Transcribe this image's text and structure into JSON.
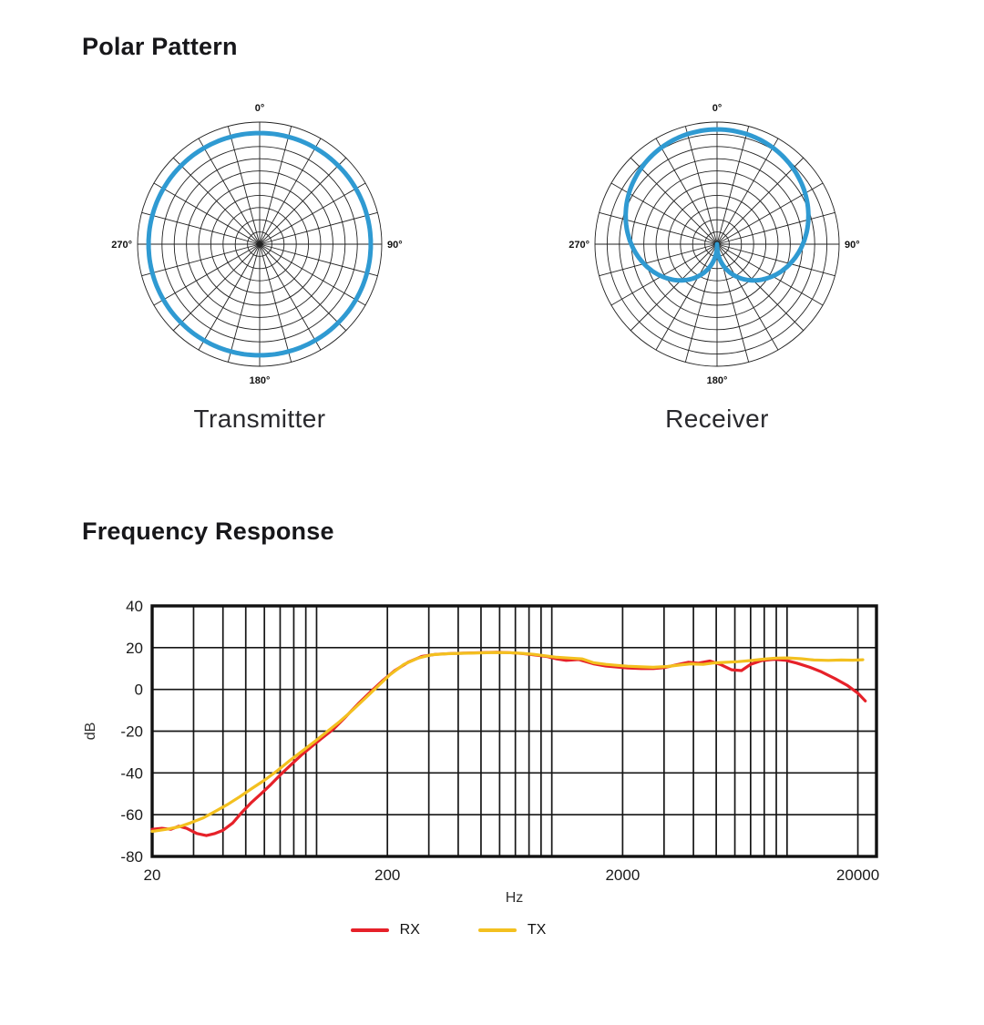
{
  "polar_section": {
    "title": "Polar Pattern",
    "charts": [
      {
        "caption": "Transmitter"
      },
      {
        "caption": "Receiver"
      }
    ]
  },
  "frequency_section": {
    "title": "Frequency Response",
    "legend": [
      {
        "label": "RX",
        "color": "#e62129"
      },
      {
        "label": "TX",
        "color": "#f3c01f"
      }
    ]
  },
  "chart_data": [
    {
      "type": "polar",
      "title": "Transmitter",
      "pattern": "omnidirectional",
      "curve_color": "#2f9ad2",
      "grid_color": "#222222",
      "rings": 10,
      "spoke_step_deg": 15,
      "degree_labels": [
        "0°",
        "90°",
        "180°",
        "270°"
      ],
      "radius_normalized": 0.91
    },
    {
      "type": "polar",
      "title": "Receiver",
      "pattern": "cardioid",
      "curve_color": "#2f9ad2",
      "grid_color": "#222222",
      "rings": 10,
      "spoke_step_deg": 15,
      "degree_labels": [
        "0°",
        "90°",
        "180°",
        "270°"
      ],
      "radius_normalized": 0.94
    },
    {
      "type": "line",
      "title": "Frequency Response",
      "xlabel": "Hz",
      "ylabel": "dB",
      "x_scale": "log",
      "xlim": [
        20,
        24000
      ],
      "ylim": [
        -80,
        40
      ],
      "x_ticks": [
        20,
        200,
        2000,
        20000
      ],
      "y_ticks": [
        40,
        20,
        0,
        -20,
        -40,
        -60,
        -80
      ],
      "x_gridlines": [
        30,
        40,
        50,
        60,
        70,
        80,
        90,
        100,
        200,
        300,
        400,
        500,
        600,
        700,
        800,
        900,
        1000,
        2000,
        3000,
        4000,
        5000,
        6000,
        7000,
        8000,
        9000,
        10000,
        20000
      ],
      "grid_on": true,
      "legend_position": "bottom",
      "series": [
        {
          "name": "RX",
          "color": "#e62129",
          "points": [
            [
              20,
              -67
            ],
            [
              22,
              -66.5
            ],
            [
              24,
              -67
            ],
            [
              26,
              -65.5
            ],
            [
              28,
              -66.5
            ],
            [
              31,
              -69
            ],
            [
              34,
              -70
            ],
            [
              37,
              -69
            ],
            [
              40,
              -67.5
            ],
            [
              44,
              -64
            ],
            [
              48,
              -59
            ],
            [
              53,
              -54
            ],
            [
              58,
              -50
            ],
            [
              64,
              -45.5
            ],
            [
              70,
              -41
            ],
            [
              78,
              -36
            ],
            [
              86,
              -31.5
            ],
            [
              95,
              -27.5
            ],
            [
              105,
              -23.5
            ],
            [
              118,
              -19
            ],
            [
              132,
              -13.5
            ],
            [
              150,
              -7
            ],
            [
              170,
              -1
            ],
            [
              190,
              4
            ],
            [
              215,
              9
            ],
            [
              245,
              13
            ],
            [
              280,
              15.8
            ],
            [
              320,
              16.8
            ],
            [
              370,
              17.2
            ],
            [
              430,
              17.4
            ],
            [
              500,
              17.6
            ],
            [
              580,
              17.8
            ],
            [
              660,
              17.6
            ],
            [
              750,
              17.2
            ],
            [
              850,
              16.5
            ],
            [
              950,
              15.8
            ],
            [
              1050,
              14.6
            ],
            [
              1150,
              13.9
            ],
            [
              1300,
              14.3
            ],
            [
              1500,
              12.3
            ],
            [
              1700,
              11.2
            ],
            [
              1900,
              10.7
            ],
            [
              2100,
              10.3
            ],
            [
              2400,
              10
            ],
            [
              2700,
              10
            ],
            [
              3000,
              10.4
            ],
            [
              3400,
              11.8
            ],
            [
              3800,
              13
            ],
            [
              4200,
              12.6
            ],
            [
              4700,
              13.6
            ],
            [
              5200,
              12
            ],
            [
              5800,
              9.4
            ],
            [
              6400,
              9
            ],
            [
              7000,
              12
            ],
            [
              7800,
              13.8
            ],
            [
              8800,
              14.4
            ],
            [
              9800,
              14
            ],
            [
              11000,
              12.6
            ],
            [
              12500,
              10.6
            ],
            [
              14000,
              8.4
            ],
            [
              16000,
              5.2
            ],
            [
              18000,
              2
            ],
            [
              20000,
              -1.8
            ],
            [
              21500,
              -5.5
            ]
          ]
        },
        {
          "name": "TX",
          "color": "#f3c01f",
          "points": [
            [
              20,
              -68
            ],
            [
              23,
              -67
            ],
            [
              26,
              -65.8
            ],
            [
              29,
              -64
            ],
            [
              33,
              -61.5
            ],
            [
              37,
              -58.5
            ],
            [
              42,
              -55
            ],
            [
              47,
              -51.5
            ],
            [
              53,
              -47.5
            ],
            [
              60,
              -43.5
            ],
            [
              68,
              -39
            ],
            [
              77,
              -34
            ],
            [
              87,
              -29.5
            ],
            [
              98,
              -25
            ],
            [
              110,
              -20.5
            ],
            [
              125,
              -15.5
            ],
            [
              142,
              -10
            ],
            [
              160,
              -4.5
            ],
            [
              180,
              1
            ],
            [
              205,
              7
            ],
            [
              235,
              12
            ],
            [
              270,
              15
            ],
            [
              310,
              16.6
            ],
            [
              360,
              17.1
            ],
            [
              420,
              17.3
            ],
            [
              490,
              17.5
            ],
            [
              570,
              17.7
            ],
            [
              650,
              17.6
            ],
            [
              740,
              17.3
            ],
            [
              840,
              16.8
            ],
            [
              940,
              16.1
            ],
            [
              1050,
              15.4
            ],
            [
              1200,
              15
            ],
            [
              1350,
              14.6
            ],
            [
              1500,
              12.8
            ],
            [
              1700,
              12
            ],
            [
              1900,
              11.5
            ],
            [
              2100,
              11.1
            ],
            [
              2400,
              10.8
            ],
            [
              2700,
              10.6
            ],
            [
              3100,
              11
            ],
            [
              3500,
              11.7
            ],
            [
              3900,
              12.2
            ],
            [
              4400,
              12
            ],
            [
              4900,
              12.7
            ],
            [
              5500,
              13
            ],
            [
              6200,
              13.3
            ],
            [
              7000,
              13.8
            ],
            [
              8000,
              14.5
            ],
            [
              9000,
              15
            ],
            [
              10000,
              15.1
            ],
            [
              11500,
              14.7
            ],
            [
              13000,
              14.1
            ],
            [
              15000,
              13.9
            ],
            [
              17000,
              14.1
            ],
            [
              19000,
              14
            ],
            [
              21000,
              14.2
            ]
          ]
        }
      ]
    }
  ]
}
